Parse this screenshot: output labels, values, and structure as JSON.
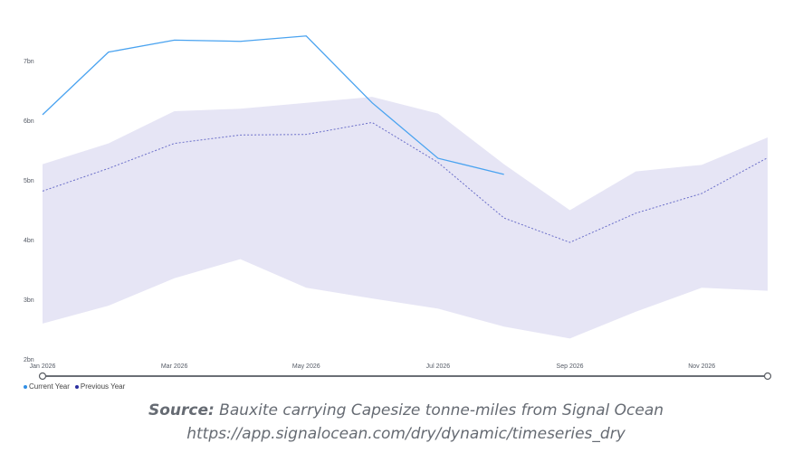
{
  "chart_data": {
    "type": "line",
    "x": [
      "Jan 2026",
      "Feb 2026",
      "Mar 2026",
      "Apr 2026",
      "May 2026",
      "Jun 2026",
      "Jul 2026",
      "Aug 2026",
      "Sep 2026",
      "Oct 2026",
      "Nov 2026",
      "Dec 2026"
    ],
    "x_tick_labels": [
      "Jan 2026",
      "Mar 2026",
      "May 2026",
      "Jul 2026",
      "Sep 2026",
      "Nov 2026"
    ],
    "y_tick_labels": [
      "2bn",
      "3bn",
      "4bn",
      "5bn",
      "6bn",
      "7bn"
    ],
    "y_ticks": [
      2,
      3,
      4,
      5,
      6,
      7
    ],
    "ylim": [
      2,
      7.6
    ],
    "series": [
      {
        "name": "Current Year",
        "color": "#4aa3f0",
        "style": "solid",
        "values": [
          6.1,
          7.15,
          7.35,
          7.33,
          7.42,
          6.3,
          5.37,
          5.1,
          null,
          null,
          null,
          null
        ]
      },
      {
        "name": "Previous Year",
        "color": "#6b6fc9",
        "style": "dotted",
        "values": [
          4.82,
          5.2,
          5.62,
          5.76,
          5.77,
          5.97,
          5.3,
          4.37,
          3.96,
          4.45,
          4.78,
          5.38
        ]
      }
    ],
    "band": {
      "color": "#e6e5f5",
      "upper": [
        5.27,
        5.62,
        6.16,
        6.2,
        6.3,
        6.4,
        6.12,
        5.27,
        4.5,
        5.15,
        5.26,
        5.72
      ],
      "lower": [
        2.6,
        2.9,
        3.36,
        3.68,
        3.2,
        3.02,
        2.85,
        2.55,
        2.35,
        2.8,
        3.2,
        3.15
      ]
    },
    "grid": false,
    "legend": "bottom-left"
  },
  "legend": [
    {
      "label": "Current Year",
      "color": "#2f8ee5"
    },
    {
      "label": "Previous Year",
      "color": "#2b2fa0"
    }
  ],
  "source": {
    "label": "Source:",
    "text": " Bauxite carrying Capesize tonne-miles from Signal Ocean",
    "url": "https://app.signalocean.com/dry/dynamic/timeseries_dry"
  }
}
